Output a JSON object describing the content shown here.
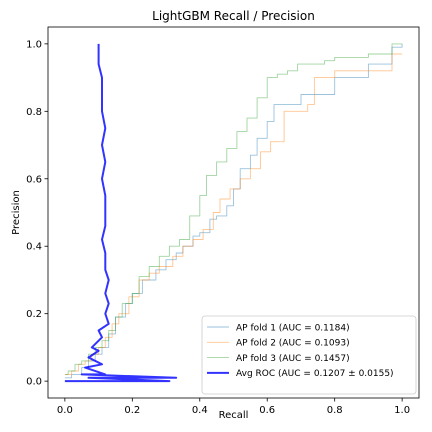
{
  "chart_data": {
    "type": "line",
    "title": "LightGBM Recall / Precision",
    "xlabel": "Recall",
    "ylabel": "Precision",
    "xlim": [
      -0.05,
      1.05
    ],
    "ylim": [
      -0.05,
      1.05
    ],
    "xticks": [
      0.0,
      0.2,
      0.4,
      0.6,
      0.8,
      1.0
    ],
    "xtick_labels": [
      "0.0",
      "0.2",
      "0.4",
      "0.6",
      "0.8",
      "1.0"
    ],
    "yticks": [
      0.0,
      0.2,
      0.4,
      0.6,
      0.8,
      1.0
    ],
    "ytick_labels": [
      "0.0",
      "0.2",
      "0.4",
      "0.6",
      "0.8",
      "1.0"
    ],
    "grid": false,
    "legend_position": "lower-right",
    "series": [
      {
        "name": "AP fold 1 (AUC = 0.1184)",
        "color": "#1f77b4",
        "step": true,
        "points": [
          [
            0.0,
            0.01
          ],
          [
            0.02,
            0.02
          ],
          [
            0.05,
            0.04
          ],
          [
            0.07,
            0.06
          ],
          [
            0.09,
            0.08
          ],
          [
            0.11,
            0.1
          ],
          [
            0.13,
            0.14
          ],
          [
            0.15,
            0.19
          ],
          [
            0.18,
            0.23
          ],
          [
            0.2,
            0.26
          ],
          [
            0.23,
            0.3
          ],
          [
            0.27,
            0.33
          ],
          [
            0.3,
            0.36
          ],
          [
            0.33,
            0.38
          ],
          [
            0.35,
            0.4
          ],
          [
            0.38,
            0.43
          ],
          [
            0.4,
            0.44
          ],
          [
            0.43,
            0.48
          ],
          [
            0.45,
            0.49
          ],
          [
            0.48,
            0.52
          ],
          [
            0.5,
            0.57
          ],
          [
            0.52,
            0.63
          ],
          [
            0.55,
            0.67
          ],
          [
            0.57,
            0.72
          ],
          [
            0.6,
            0.77
          ],
          [
            0.62,
            0.82
          ],
          [
            0.7,
            0.85
          ],
          [
            0.8,
            0.9
          ],
          [
            0.9,
            0.94
          ],
          [
            0.97,
            0.99
          ],
          [
            1.0,
            1.0
          ]
        ]
      },
      {
        "name": "AP fold 2 (AUC = 0.1093)",
        "color": "#ff7f0e",
        "step": true,
        "points": [
          [
            0.0,
            0.02
          ],
          [
            0.02,
            0.03
          ],
          [
            0.04,
            0.05
          ],
          [
            0.06,
            0.06
          ],
          [
            0.08,
            0.08
          ],
          [
            0.1,
            0.1
          ],
          [
            0.12,
            0.13
          ],
          [
            0.14,
            0.17
          ],
          [
            0.16,
            0.2
          ],
          [
            0.19,
            0.25
          ],
          [
            0.22,
            0.3
          ],
          [
            0.25,
            0.32
          ],
          [
            0.28,
            0.34
          ],
          [
            0.32,
            0.37
          ],
          [
            0.35,
            0.4
          ],
          [
            0.38,
            0.42
          ],
          [
            0.41,
            0.45
          ],
          [
            0.44,
            0.5
          ],
          [
            0.46,
            0.54
          ],
          [
            0.49,
            0.57
          ],
          [
            0.52,
            0.6
          ],
          [
            0.55,
            0.63
          ],
          [
            0.58,
            0.68
          ],
          [
            0.61,
            0.71
          ],
          [
            0.65,
            0.8
          ],
          [
            0.72,
            0.82
          ],
          [
            0.74,
            0.9
          ],
          [
            0.8,
            0.92
          ],
          [
            0.97,
            0.97
          ],
          [
            1.0,
            0.97
          ]
        ]
      },
      {
        "name": "AP fold 3 (AUC = 0.1457)",
        "color": "#2ca02c",
        "step": true,
        "points": [
          [
            0.0,
            0.02
          ],
          [
            0.01,
            0.03
          ],
          [
            0.03,
            0.05
          ],
          [
            0.05,
            0.06
          ],
          [
            0.07,
            0.08
          ],
          [
            0.09,
            0.1
          ],
          [
            0.11,
            0.12
          ],
          [
            0.13,
            0.15
          ],
          [
            0.15,
            0.19
          ],
          [
            0.17,
            0.23
          ],
          [
            0.2,
            0.26
          ],
          [
            0.22,
            0.31
          ],
          [
            0.25,
            0.34
          ],
          [
            0.28,
            0.37
          ],
          [
            0.31,
            0.4
          ],
          [
            0.34,
            0.42
          ],
          [
            0.37,
            0.49
          ],
          [
            0.4,
            0.55
          ],
          [
            0.42,
            0.61
          ],
          [
            0.45,
            0.65
          ],
          [
            0.48,
            0.69
          ],
          [
            0.51,
            0.74
          ],
          [
            0.54,
            0.78
          ],
          [
            0.57,
            0.84
          ],
          [
            0.6,
            0.9
          ],
          [
            0.63,
            0.91
          ],
          [
            0.66,
            0.92
          ],
          [
            0.69,
            0.94
          ],
          [
            0.72,
            0.94
          ],
          [
            0.74,
            0.94
          ],
          [
            0.77,
            0.95
          ],
          [
            0.8,
            0.96
          ],
          [
            0.9,
            0.97
          ],
          [
            0.97,
            1.0
          ],
          [
            1.0,
            1.0
          ]
        ]
      },
      {
        "name": "Avg ROC (AUC = 0.1207 ± 0.0155)",
        "color": "#0000ff",
        "step": false,
        "points": [
          [
            0.0,
            0.0
          ],
          [
            0.31,
            0.0
          ],
          [
            0.07,
            0.01
          ],
          [
            0.33,
            0.01
          ],
          [
            0.05,
            0.02
          ],
          [
            0.12,
            0.02
          ],
          [
            0.06,
            0.04
          ],
          [
            0.11,
            0.05
          ],
          [
            0.07,
            0.07
          ],
          [
            0.1,
            0.09
          ],
          [
            0.08,
            0.1
          ],
          [
            0.11,
            0.13
          ],
          [
            0.1,
            0.15
          ],
          [
            0.13,
            0.17
          ],
          [
            0.12,
            0.2
          ],
          [
            0.13,
            0.23
          ],
          [
            0.12,
            0.26
          ],
          [
            0.13,
            0.3
          ],
          [
            0.12,
            0.33
          ],
          [
            0.12,
            0.38
          ],
          [
            0.11,
            0.42
          ],
          [
            0.12,
            0.46
          ],
          [
            0.12,
            0.5
          ],
          [
            0.12,
            0.55
          ],
          [
            0.11,
            0.6
          ],
          [
            0.12,
            0.65
          ],
          [
            0.11,
            0.7
          ],
          [
            0.12,
            0.75
          ],
          [
            0.11,
            0.8
          ],
          [
            0.11,
            0.85
          ],
          [
            0.11,
            0.9
          ],
          [
            0.1,
            0.94
          ],
          [
            0.1,
            0.97
          ],
          [
            0.1,
            1.0
          ]
        ]
      }
    ]
  }
}
